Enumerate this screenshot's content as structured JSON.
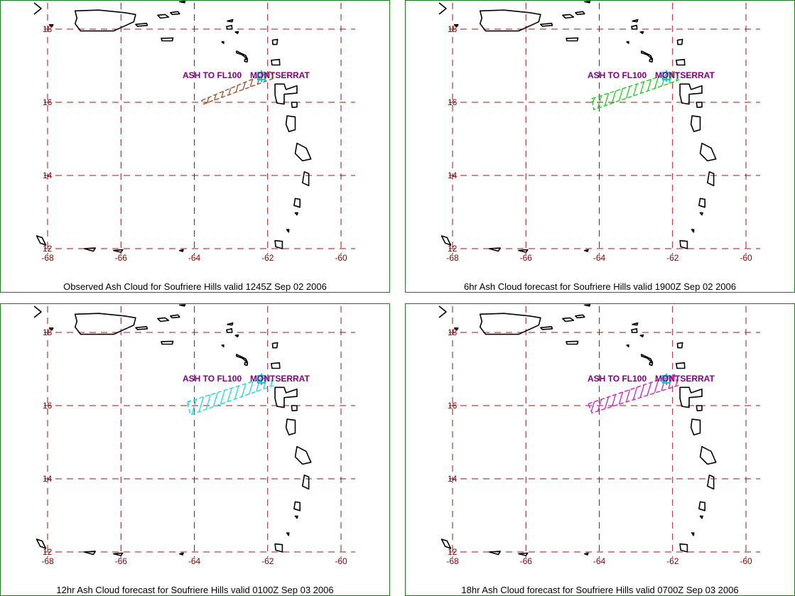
{
  "colors": {
    "border": "#1f7a1f",
    "grid": "#a01010",
    "tick": "#8b0000",
    "annotation": "#800080",
    "volcano_marker": "#00c8d8",
    "coastline": "#000000"
  },
  "axes": {
    "lon_ticks": [
      "-68",
      "-66",
      "-64",
      "-62",
      "-60"
    ],
    "lat_ticks": [
      "18",
      "16",
      "14",
      "12"
    ],
    "lon_range": [
      -68.2,
      -59.7
    ],
    "lat_range": [
      11.8,
      18.55
    ]
  },
  "panels": [
    {
      "caption": "Observed Ash Cloud for Soufriere  Hills valid 1245Z Sep 02 2006",
      "layer_label": "ASH TO FL100",
      "volcano_label": "MONTSERRAT",
      "ash_color": "#a0522d",
      "ash_polygon": [
        [
          -63.8,
          16.05
        ],
        [
          -61.9,
          16.85
        ],
        [
          -61.85,
          16.65
        ],
        [
          -63.75,
          15.95
        ]
      ]
    },
    {
      "caption": "6hr Ash Cloud forecast for Soufriere  Hills valid 1900Z Sep 02 2006",
      "layer_label": "ASH TO FL100",
      "volcano_label": "MONTSERRAT",
      "ash_color": "#22cc22",
      "ash_polygon": [
        [
          -64.2,
          16.1
        ],
        [
          -61.9,
          16.85
        ],
        [
          -61.85,
          16.6
        ],
        [
          -64.15,
          15.8
        ]
      ]
    },
    {
      "caption": "12hr Ash Cloud forecast for Soufriere  Hills valid 0100Z Sep 03 2006",
      "layer_label": "ASH TO FL100",
      "volcano_label": "MONTSERRAT",
      "ash_color": "#22d8d8",
      "ash_polygon": [
        [
          -64.2,
          16.1
        ],
        [
          -61.95,
          16.8
        ],
        [
          -61.85,
          16.55
        ],
        [
          -64.1,
          15.75
        ]
      ]
    },
    {
      "caption": "18hr Ash Cloud forecast for Soufriere  Hills valid 0700Z Sep 03 2006",
      "layer_label": "ASH TO FL100",
      "volcano_label": "MONTSERRAT",
      "ash_color": "#d020d0",
      "ash_polygon": [
        [
          -64.3,
          16.05
        ],
        [
          -61.95,
          16.85
        ],
        [
          -61.85,
          16.55
        ],
        [
          -64.2,
          15.8
        ]
      ]
    }
  ],
  "volcano": {
    "lon": -62.17,
    "lat": 16.72
  },
  "islands": [
    {
      "name": "puerto-rico",
      "pts": [
        [
          -67.25,
          18.5
        ],
        [
          -66.6,
          18.52
        ],
        [
          -65.9,
          18.45
        ],
        [
          -65.6,
          18.4
        ],
        [
          -65.65,
          18.2
        ],
        [
          -66.2,
          17.95
        ],
        [
          -67.1,
          17.95
        ],
        [
          -67.25,
          18.15
        ],
        [
          -67.2,
          18.3
        ]
      ]
    },
    {
      "name": "vieques",
      "pts": [
        [
          -65.6,
          18.13
        ],
        [
          -65.3,
          18.16
        ],
        [
          -65.28,
          18.1
        ],
        [
          -65.55,
          18.08
        ]
      ]
    },
    {
      "name": "virgin-islands",
      "pts": [
        [
          -65.0,
          18.38
        ],
        [
          -64.8,
          18.4
        ],
        [
          -64.7,
          18.33
        ],
        [
          -64.92,
          18.3
        ]
      ]
    },
    {
      "name": "tortola",
      "pts": [
        [
          -64.65,
          18.45
        ],
        [
          -64.45,
          18.48
        ],
        [
          -64.4,
          18.42
        ],
        [
          -64.6,
          18.4
        ]
      ]
    },
    {
      "name": "st-croix",
      "pts": [
        [
          -64.9,
          17.75
        ],
        [
          -64.58,
          17.76
        ],
        [
          -64.6,
          17.68
        ],
        [
          -64.88,
          17.68
        ]
      ]
    },
    {
      "name": "anegada",
      "pts": [
        [
          -64.4,
          18.75
        ],
        [
          -64.25,
          18.76
        ],
        [
          -64.27,
          18.72
        ]
      ]
    },
    {
      "name": "anguilla",
      "pts": [
        [
          -63.1,
          18.22
        ],
        [
          -62.95,
          18.26
        ],
        [
          -62.97,
          18.2
        ]
      ]
    },
    {
      "name": "st-martin",
      "pts": [
        [
          -63.12,
          18.07
        ],
        [
          -62.98,
          18.1
        ],
        [
          -62.97,
          18.0
        ],
        [
          -63.1,
          18.0
        ]
      ]
    },
    {
      "name": "st-barth",
      "pts": [
        [
          -62.88,
          17.92
        ],
        [
          -62.8,
          17.93
        ],
        [
          -62.82,
          17.88
        ]
      ]
    },
    {
      "name": "saba",
      "pts": [
        [
          -63.25,
          17.65
        ],
        [
          -63.2,
          17.66
        ],
        [
          -63.2,
          17.61
        ]
      ]
    },
    {
      "name": "st-kitts",
      "pts": [
        [
          -62.85,
          17.4
        ],
        [
          -62.6,
          17.28
        ],
        [
          -62.55,
          17.18
        ],
        [
          -62.7,
          17.3
        ],
        [
          -62.85,
          17.35
        ]
      ]
    },
    {
      "name": "nevis",
      "pts": [
        [
          -62.62,
          17.18
        ],
        [
          -62.55,
          17.17
        ],
        [
          -62.56,
          17.1
        ],
        [
          -62.63,
          17.12
        ]
      ]
    },
    {
      "name": "barbuda",
      "pts": [
        [
          -61.87,
          17.7
        ],
        [
          -61.73,
          17.72
        ],
        [
          -61.75,
          17.58
        ],
        [
          -61.86,
          17.58
        ]
      ]
    },
    {
      "name": "antigua",
      "pts": [
        [
          -61.9,
          17.15
        ],
        [
          -61.68,
          17.17
        ],
        [
          -61.67,
          17.02
        ],
        [
          -61.88,
          17.02
        ]
      ]
    },
    {
      "name": "guadeloupe",
      "pts": [
        [
          -61.8,
          16.5
        ],
        [
          -61.55,
          16.5
        ],
        [
          -61.5,
          16.35
        ],
        [
          -61.2,
          16.45
        ],
        [
          -61.2,
          16.25
        ],
        [
          -61.55,
          16.22
        ],
        [
          -61.55,
          15.95
        ],
        [
          -61.75,
          15.98
        ],
        [
          -61.8,
          16.2
        ]
      ]
    },
    {
      "name": "marie-galante",
      "pts": [
        [
          -61.35,
          16.0
        ],
        [
          -61.2,
          16.0
        ],
        [
          -61.2,
          15.87
        ],
        [
          -61.33,
          15.86
        ]
      ]
    },
    {
      "name": "dominica",
      "pts": [
        [
          -61.47,
          15.63
        ],
        [
          -61.25,
          15.6
        ],
        [
          -61.25,
          15.25
        ],
        [
          -61.42,
          15.2
        ],
        [
          -61.5,
          15.4
        ]
      ]
    },
    {
      "name": "martinique",
      "pts": [
        [
          -61.2,
          14.88
        ],
        [
          -60.95,
          14.75
        ],
        [
          -60.82,
          14.45
        ],
        [
          -61.05,
          14.4
        ],
        [
          -61.25,
          14.6
        ]
      ]
    },
    {
      "name": "st-lucia",
      "pts": [
        [
          -61.0,
          14.1
        ],
        [
          -60.88,
          14.05
        ],
        [
          -60.88,
          13.72
        ],
        [
          -61.05,
          13.8
        ]
      ]
    },
    {
      "name": "st-vincent",
      "pts": [
        [
          -61.25,
          13.37
        ],
        [
          -61.12,
          13.35
        ],
        [
          -61.12,
          13.13
        ],
        [
          -61.28,
          13.18
        ]
      ]
    },
    {
      "name": "bequia",
      "pts": [
        [
          -61.25,
          12.98
        ],
        [
          -61.18,
          12.98
        ],
        [
          -61.2,
          12.92
        ]
      ]
    },
    {
      "name": "carriacou",
      "pts": [
        [
          -61.48,
          12.52
        ],
        [
          -61.42,
          12.52
        ],
        [
          -61.43,
          12.45
        ]
      ]
    },
    {
      "name": "grenada",
      "pts": [
        [
          -61.8,
          12.22
        ],
        [
          -61.6,
          12.2
        ],
        [
          -61.6,
          12.0
        ],
        [
          -61.78,
          12.05
        ]
      ]
    },
    {
      "name": "aruba-area",
      "pts": [
        [
          -68.3,
          12.35
        ],
        [
          -68.15,
          12.3
        ],
        [
          -68.05,
          12.1
        ],
        [
          -68.2,
          12.15
        ]
      ]
    },
    {
      "name": "aves-bank-1",
      "pts": [
        [
          -67.0,
          12.0
        ],
        [
          -66.7,
          12.02
        ],
        [
          -66.75,
          11.93
        ]
      ]
    },
    {
      "name": "aves-bank-2",
      "pts": [
        [
          -66.2,
          11.95
        ],
        [
          -65.95,
          11.97
        ],
        [
          -66.0,
          11.9
        ]
      ]
    },
    {
      "name": "aves-bank-3",
      "pts": [
        [
          -64.4,
          11.95
        ],
        [
          -64.3,
          11.97
        ],
        [
          -64.32,
          11.92
        ]
      ]
    },
    {
      "name": "mona",
      "pts": [
        [
          -67.95,
          18.12
        ],
        [
          -67.85,
          18.12
        ],
        [
          -67.88,
          18.07
        ]
      ]
    }
  ]
}
